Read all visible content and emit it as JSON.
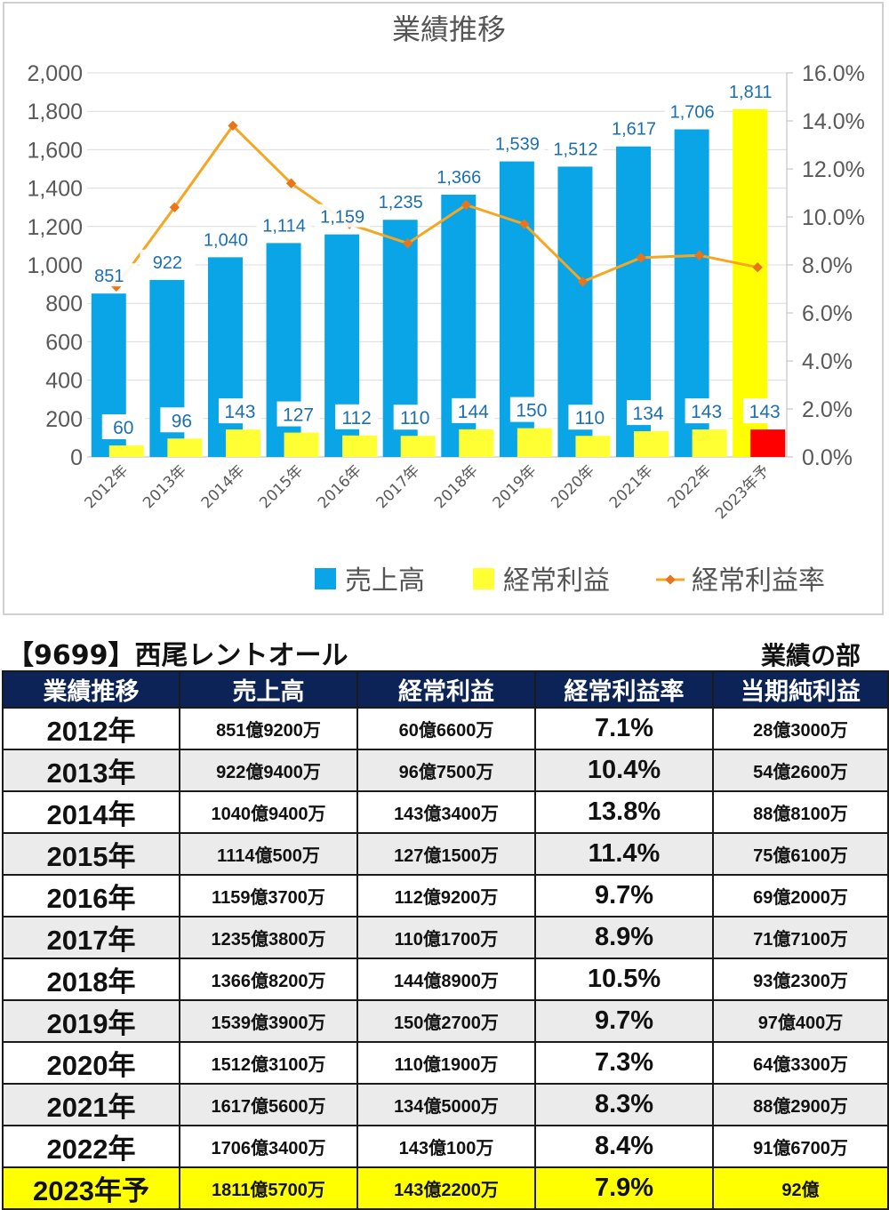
{
  "chart_data": {
    "type": "bar",
    "title": "業績推移",
    "categories": [
      "2012年",
      "2013年",
      "2014年",
      "2015年",
      "2016年",
      "2017年",
      "2018年",
      "2019年",
      "2020年",
      "2021年",
      "2022年",
      "2023年予"
    ],
    "series": [
      {
        "name": "売上高",
        "type": "bar",
        "axis": "left",
        "color": "#0aa5e6",
        "values": [
          851,
          922,
          1040,
          1114,
          1159,
          1235,
          1366,
          1539,
          1512,
          1617,
          1706,
          1811
        ],
        "labels": [
          "851",
          "922",
          "1,040",
          "1,114",
          "1,159",
          "1,235",
          "1,366",
          "1,539",
          "1,512",
          "1,617",
          "1,706",
          "1,811"
        ],
        "last_point_color": "#ffff00"
      },
      {
        "name": "経常利益",
        "type": "bar",
        "axis": "left",
        "color": "#ffff33",
        "values": [
          60,
          96,
          143,
          127,
          112,
          110,
          144,
          150,
          110,
          134,
          143,
          143
        ],
        "labels": [
          "60",
          "96",
          "143",
          "127",
          "112",
          "110",
          "144",
          "150",
          "110",
          "134",
          "143",
          "143"
        ],
        "last_point_color": "#ff0000"
      },
      {
        "name": "経常利益率",
        "type": "line",
        "axis": "right",
        "color": "#f5a623",
        "marker_color": "#e8741c",
        "values": [
          7.1,
          10.4,
          13.8,
          11.4,
          9.7,
          8.9,
          10.5,
          9.7,
          7.3,
          8.3,
          8.4,
          7.9
        ]
      }
    ],
    "y_left": {
      "min": 0,
      "max": 2000,
      "ticks": [
        "0",
        "200",
        "400",
        "600",
        "800",
        "1,000",
        "1,200",
        "1,400",
        "1,600",
        "1,800",
        "2,000"
      ]
    },
    "y_right": {
      "min": 0,
      "max": 16,
      "ticks": [
        "0.0%",
        "2.0%",
        "4.0%",
        "6.0%",
        "8.0%",
        "10.0%",
        "12.0%",
        "14.0%",
        "16.0%"
      ]
    },
    "grid": true,
    "legend_position": "bottom"
  },
  "header": {
    "company": "【9699】西尾レントオール",
    "section": "業績の部"
  },
  "table": {
    "columns": [
      "業績推移",
      "売上高",
      "経常利益",
      "経常利益率",
      "当期純利益"
    ],
    "rows": [
      [
        "2012年",
        "851億9200万",
        "60億6600万",
        "7.1%",
        "28億3000万"
      ],
      [
        "2013年",
        "922億9400万",
        "96億7500万",
        "10.4%",
        "54億2600万"
      ],
      [
        "2014年",
        "1040億9400万",
        "143億3400万",
        "13.8%",
        "88億8100万"
      ],
      [
        "2015年",
        "1114億500万",
        "127億1500万",
        "11.4%",
        "75億6100万"
      ],
      [
        "2016年",
        "1159億3700万",
        "112億9200万",
        "9.7%",
        "69億2000万"
      ],
      [
        "2017年",
        "1235億3800万",
        "110億1700万",
        "8.9%",
        "71億7100万"
      ],
      [
        "2018年",
        "1366億8200万",
        "144億8900万",
        "10.5%",
        "93億2300万"
      ],
      [
        "2019年",
        "1539億3900万",
        "150億2700万",
        "9.7%",
        "97億400万"
      ],
      [
        "2020年",
        "1512億3100万",
        "110億1900万",
        "7.3%",
        "64億3300万"
      ],
      [
        "2021年",
        "1617億5600万",
        "134億5000万",
        "8.3%",
        "88億2900万"
      ],
      [
        "2022年",
        "1706億3400万",
        "143億100万",
        "8.4%",
        "91億6700万"
      ],
      [
        "2023年予",
        "1811億5700万",
        "143億2200万",
        "7.9%",
        "92億"
      ]
    ],
    "highlight_color": "#ffff00",
    "header_color": "#0c2357"
  }
}
